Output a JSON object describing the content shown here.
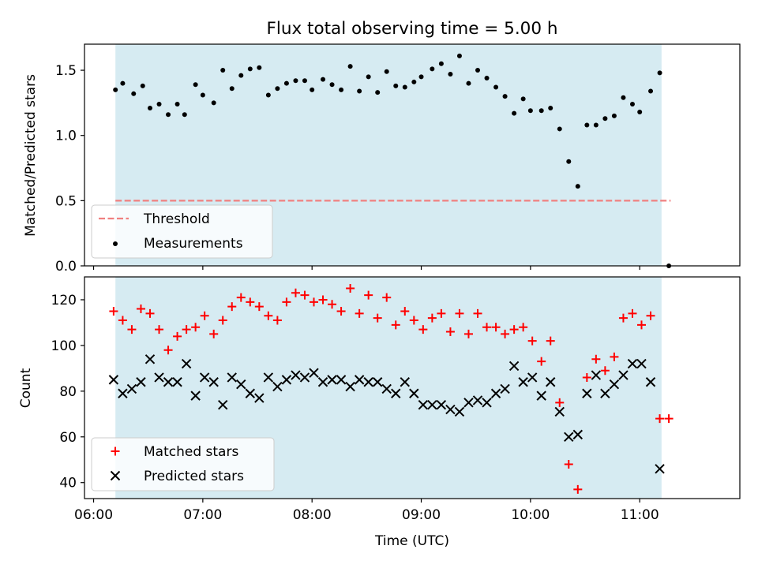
{
  "chart_data": [
    {
      "type": "scatter",
      "title": "Flux total observing time = 5.00 h",
      "xlabel": "",
      "ylabel": "Matched/Predicted stars",
      "ylim": [
        0,
        1.7
      ],
      "yticks": [
        0,
        0.5,
        1.0,
        1.5
      ],
      "ytick_labels": [
        "0.0",
        "0.5",
        "1.0",
        "1.5"
      ],
      "xlim_minutes": [
        355,
        715
      ],
      "shaded_span": {
        "start": "06:12",
        "end": "11:12",
        "color": "#add8e6"
      },
      "threshold": {
        "name": "Threshold",
        "value": 0.5,
        "x_start": "06:12",
        "x_end": "11:17",
        "color": "#f08080"
      },
      "series": [
        {
          "name": "Measurements",
          "color": "#000000",
          "x": [
            "06:12",
            "06:16",
            "06:22",
            "06:27",
            "06:31",
            "06:36",
            "06:41",
            "06:46",
            "06:50",
            "06:56",
            "07:00",
            "07:06",
            "07:11",
            "07:16",
            "07:21",
            "07:26",
            "07:31",
            "07:36",
            "07:41",
            "07:46",
            "07:51",
            "07:56",
            "08:00",
            "08:06",
            "08:11",
            "08:16",
            "08:21",
            "08:26",
            "08:31",
            "08:36",
            "08:41",
            "08:46",
            "08:51",
            "08:56",
            "09:00",
            "09:06",
            "09:11",
            "09:16",
            "09:21",
            "09:26",
            "09:31",
            "09:36",
            "09:41",
            "09:46",
            "09:51",
            "09:56",
            "10:00",
            "10:06",
            "10:11",
            "10:16",
            "10:21",
            "10:26",
            "10:31",
            "10:36",
            "10:41",
            "10:46",
            "10:51",
            "10:56",
            "11:00",
            "11:06",
            "11:11",
            "11:16"
          ],
          "y": [
            1.35,
            1.4,
            1.32,
            1.38,
            1.21,
            1.24,
            1.16,
            1.24,
            1.16,
            1.39,
            1.31,
            1.25,
            1.5,
            1.36,
            1.46,
            1.51,
            1.52,
            1.31,
            1.36,
            1.4,
            1.42,
            1.42,
            1.35,
            1.43,
            1.39,
            1.35,
            1.53,
            1.34,
            1.45,
            1.33,
            1.49,
            1.38,
            1.37,
            1.41,
            1.45,
            1.51,
            1.55,
            1.47,
            1.61,
            1.4,
            1.5,
            1.44,
            1.37,
            1.3,
            1.17,
            1.28,
            1.19,
            1.19,
            1.21,
            1.05,
            0.8,
            0.61,
            1.08,
            1.08,
            1.13,
            1.15,
            1.29,
            1.24,
            1.18,
            1.34,
            1.48,
            0.0
          ]
        }
      ],
      "legend": "lower-left"
    },
    {
      "type": "scatter",
      "title": "",
      "xlabel": "Time (UTC)",
      "ylabel": "Count",
      "ylim": [
        33,
        130
      ],
      "yticks": [
        40,
        60,
        80,
        100,
        120
      ],
      "ytick_labels": [
        "40",
        "60",
        "80",
        "100",
        "120"
      ],
      "xlim_minutes": [
        355,
        715
      ],
      "xticks_minutes": [
        360,
        420,
        480,
        540,
        600,
        660
      ],
      "xtick_labels": [
        "06:00",
        "07:00",
        "08:00",
        "09:00",
        "10:00",
        "11:00"
      ],
      "shaded_span": {
        "start": "06:12",
        "end": "11:12",
        "color": "#add8e6"
      },
      "series": [
        {
          "name": "Matched stars",
          "marker": "plus",
          "color": "#ff0000",
          "x": [
            "06:11",
            "06:16",
            "06:21",
            "06:26",
            "06:31",
            "06:36",
            "06:41",
            "06:46",
            "06:51",
            "06:56",
            "07:01",
            "07:06",
            "07:11",
            "07:16",
            "07:21",
            "07:26",
            "07:31",
            "07:36",
            "07:41",
            "07:46",
            "07:51",
            "07:56",
            "08:01",
            "08:06",
            "08:11",
            "08:16",
            "08:21",
            "08:26",
            "08:31",
            "08:36",
            "08:41",
            "08:46",
            "08:51",
            "08:56",
            "09:01",
            "09:06",
            "09:11",
            "09:16",
            "09:21",
            "09:26",
            "09:31",
            "09:36",
            "09:41",
            "09:46",
            "09:51",
            "09:56",
            "10:01",
            "10:06",
            "10:11",
            "10:16",
            "10:21",
            "10:26",
            "10:31",
            "10:36",
            "10:41",
            "10:46",
            "10:51",
            "10:56",
            "11:01",
            "11:06",
            "11:11",
            "11:16"
          ],
          "y": [
            115,
            111,
            107,
            116,
            114,
            107,
            98,
            104,
            107,
            108,
            113,
            105,
            111,
            117,
            121,
            119,
            117,
            113,
            111,
            119,
            123,
            122,
            119,
            120,
            118,
            115,
            125,
            114,
            122,
            112,
            121,
            109,
            115,
            111,
            107,
            112,
            114,
            106,
            114,
            105,
            114,
            108,
            108,
            105,
            107,
            108,
            102,
            93,
            102,
            75,
            48,
            37,
            86,
            94,
            89,
            95,
            112,
            114,
            109,
            113,
            68,
            68
          ]
        },
        {
          "name": "Predicted stars",
          "marker": "x",
          "color": "#000000",
          "x": [
            "06:11",
            "06:16",
            "06:21",
            "06:26",
            "06:31",
            "06:36",
            "06:41",
            "06:46",
            "06:51",
            "06:56",
            "07:01",
            "07:06",
            "07:11",
            "07:16",
            "07:21",
            "07:26",
            "07:31",
            "07:36",
            "07:41",
            "07:46",
            "07:51",
            "07:56",
            "08:01",
            "08:06",
            "08:11",
            "08:16",
            "08:21",
            "08:26",
            "08:31",
            "08:36",
            "08:41",
            "08:46",
            "08:51",
            "08:56",
            "09:01",
            "09:06",
            "09:11",
            "09:16",
            "09:21",
            "09:26",
            "09:31",
            "09:36",
            "09:41",
            "09:46",
            "09:51",
            "09:56",
            "10:01",
            "10:06",
            "10:11",
            "10:16",
            "10:21",
            "10:26",
            "10:31",
            "10:36",
            "10:41",
            "10:46",
            "10:51",
            "10:56",
            "11:01",
            "11:06",
            "11:11"
          ],
          "y": [
            85,
            79,
            81,
            84,
            94,
            86,
            84,
            84,
            92,
            78,
            86,
            84,
            74,
            86,
            83,
            79,
            77,
            86,
            82,
            85,
            87,
            86,
            88,
            84,
            85,
            85,
            82,
            85,
            84,
            84,
            81,
            79,
            84,
            79,
            74,
            74,
            74,
            72,
            71,
            75,
            76,
            75,
            79,
            81,
            91,
            84,
            86,
            78,
            84,
            71,
            60,
            61,
            79,
            87,
            79,
            83,
            87,
            92,
            92,
            84,
            46
          ]
        }
      ],
      "legend": "lower-left"
    }
  ]
}
